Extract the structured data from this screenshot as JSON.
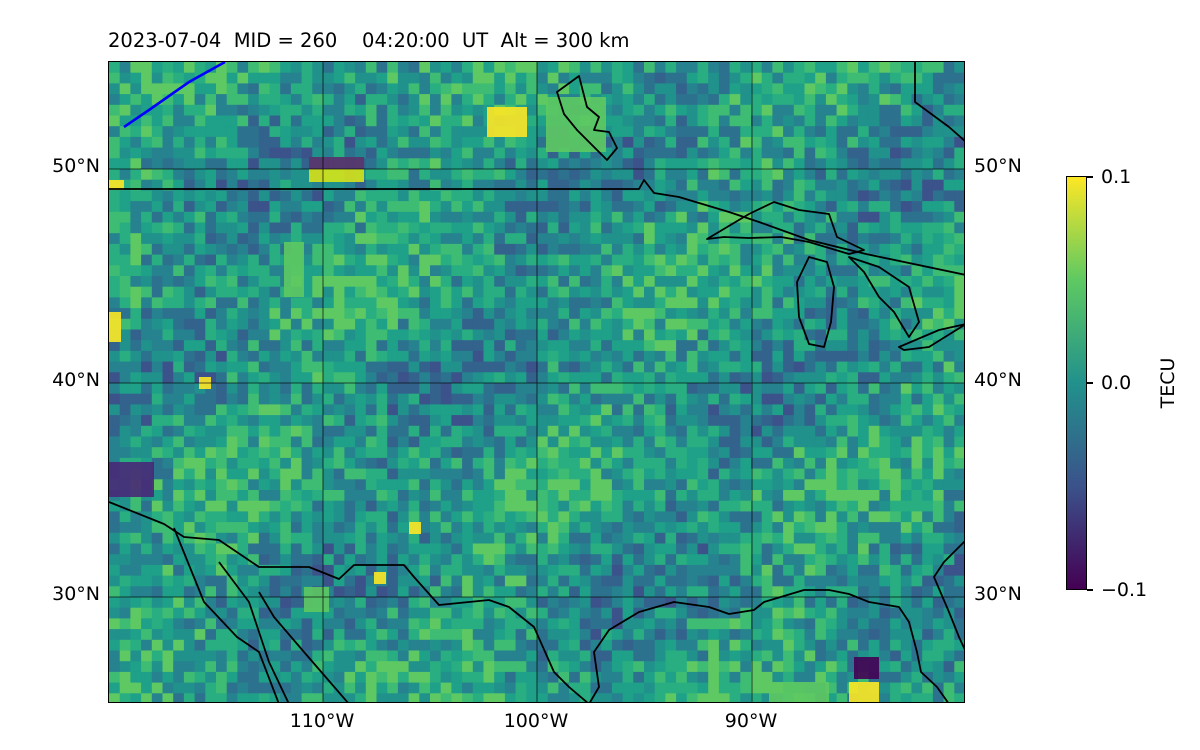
{
  "header": {
    "title": "2023-07-04  MID = 260    04:20:00  UT  Alt = 300 km"
  },
  "map": {
    "projection": "Plate Carree",
    "lon_range": [
      -120,
      -80
    ],
    "lat_range": [
      25,
      55
    ],
    "gridlines": true,
    "field_description": "TEC perturbation grid",
    "field_colormap": "viridis",
    "track_color": "#0000ff",
    "coast_color": "#000000"
  },
  "axes": {
    "y_ticks_left": [
      {
        "value": 50,
        "label": "50°N"
      },
      {
        "value": 40,
        "label": "40°N"
      },
      {
        "value": 30,
        "label": "30°N"
      }
    ],
    "y_ticks_right": [
      {
        "value": 50,
        "label": "50°N"
      },
      {
        "value": 40,
        "label": "40°N"
      },
      {
        "value": 30,
        "label": "30°N"
      }
    ],
    "x_ticks": [
      {
        "value": -110,
        "label": "110°W"
      },
      {
        "value": -100,
        "label": "100°W"
      },
      {
        "value": -90,
        "label": "90°W"
      }
    ]
  },
  "colorbar": {
    "label": "TECU",
    "min": -0.1,
    "max": 0.1,
    "ticks": [
      {
        "value": 0.1,
        "label": "0.1"
      },
      {
        "value": 0.0,
        "label": "0.0"
      },
      {
        "value": -0.1,
        "label": "−0.1"
      }
    ],
    "colors": [
      "#440154",
      "#3b528b",
      "#21918c",
      "#5ec962",
      "#fde725"
    ]
  }
}
